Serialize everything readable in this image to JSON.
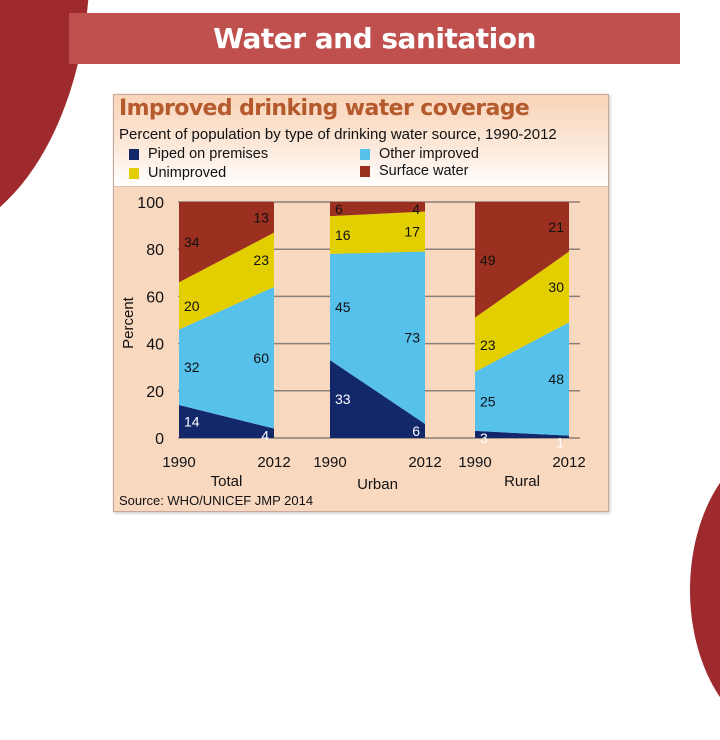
{
  "slide": {
    "title": "Water and sanitation",
    "colors": {
      "title_bar": "#c0504d",
      "accent_shape": "#9e2a2e"
    }
  },
  "chart_data": {
    "type": "area",
    "title": "Improved drinking water coverage",
    "subtitle": "Percent of population by type of drinking water source, 1990-2012",
    "ylabel": "Percent",
    "ylim": [
      0,
      100
    ],
    "yticks": [
      0,
      20,
      40,
      60,
      80,
      100
    ],
    "grid": true,
    "legend": [
      {
        "name": "Piped on premises",
        "color": "#13286b"
      },
      {
        "name": "Other improved",
        "color": "#56c1ea"
      },
      {
        "name": "Unimproved",
        "color": "#e3cf00"
      },
      {
        "name": "Surface water",
        "color": "#9b3020"
      }
    ],
    "legend_position": "top",
    "layer_order": [
      "Piped on premises",
      "Other improved",
      "Unimproved",
      "Surface water"
    ],
    "panels": [
      {
        "name": "Total",
        "x": [
          "1990",
          "2012"
        ],
        "series": [
          {
            "name": "Piped on premises",
            "values": [
              14,
              4
            ]
          },
          {
            "name": "Other improved",
            "values": [
              32,
              60
            ]
          },
          {
            "name": "Unimproved",
            "values": [
              20,
              23
            ]
          },
          {
            "name": "Surface water",
            "values": [
              34,
              13
            ]
          }
        ]
      },
      {
        "name": "Urban",
        "x": [
          "1990",
          "2012"
        ],
        "series": [
          {
            "name": "Piped on premises",
            "values": [
              33,
              6
            ]
          },
          {
            "name": "Other improved",
            "values": [
              45,
              73
            ]
          },
          {
            "name": "Unimproved",
            "values": [
              16,
              17
            ]
          },
          {
            "name": "Surface water",
            "values": [
              6,
              4
            ]
          }
        ]
      },
      {
        "name": "Rural",
        "x": [
          "1990",
          "2012"
        ],
        "series": [
          {
            "name": "Piped on premises",
            "values": [
              3,
              1
            ]
          },
          {
            "name": "Other improved",
            "values": [
              25,
              48
            ]
          },
          {
            "name": "Unimproved",
            "values": [
              23,
              30
            ]
          },
          {
            "name": "Surface water",
            "values": [
              49,
              21
            ]
          }
        ]
      }
    ],
    "source": "Source:  WHO/UNICEF JMP 2014"
  }
}
